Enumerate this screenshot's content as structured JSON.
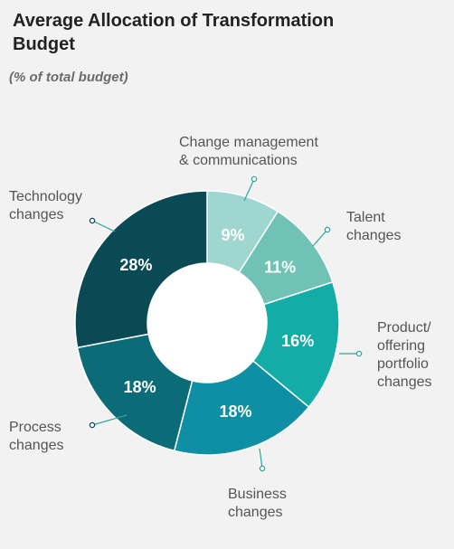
{
  "title": "Average Allocation of Transformation Budget",
  "subtitle": "(% of total budget)",
  "chart_data": {
    "type": "pie",
    "variant": "donut",
    "title": "Average Allocation of Transformation Budget",
    "subtitle": "(% of total budget)",
    "unit": "%",
    "slices": [
      {
        "label": "Change management & communications",
        "value": 9,
        "display": "9%",
        "color": "#9fd6cf",
        "text_color": "#ffffff"
      },
      {
        "label": "Talent changes",
        "value": 11,
        "display": "11%",
        "color": "#6fc2b4",
        "text_color": "#ffffff"
      },
      {
        "label": "Product/ offering portfolio changes",
        "value": 16,
        "display": "16%",
        "color": "#14aca6",
        "text_color": "#ffffff"
      },
      {
        "label": "Business changes",
        "value": 18,
        "display": "18%",
        "color": "#0e8fa3",
        "text_color": "#ffffff"
      },
      {
        "label": "Process changes",
        "value": 18,
        "display": "18%",
        "color": "#0b6c77",
        "text_color": "#ffffff"
      },
      {
        "label": "Technology changes",
        "value": 28,
        "display": "28%",
        "color": "#0a4a54",
        "text_color": "#ffffff"
      }
    ],
    "legend": "callout labels around chart",
    "callout_color": "#2aa6a0"
  }
}
